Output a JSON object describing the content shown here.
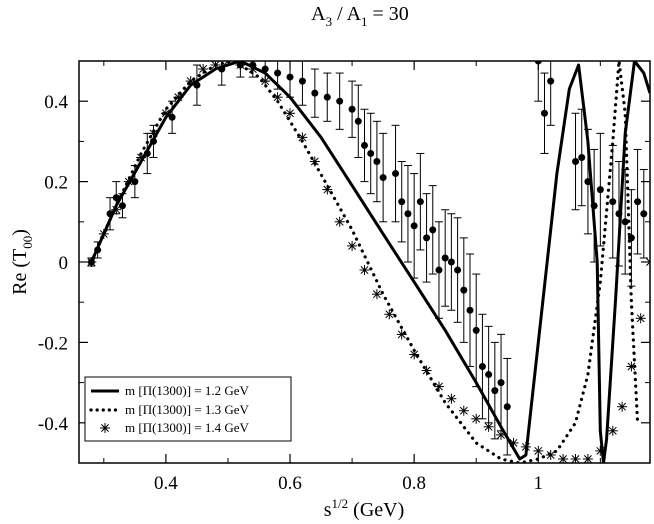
{
  "chart_data": {
    "type": "line",
    "title": {
      "main": "A",
      "sub1": "3",
      "sep": " / A",
      "sub2": "1",
      "tail": " = 30"
    },
    "xlabel": {
      "base": "s",
      "sup": "1/2",
      "tail": " (GeV)"
    },
    "ylabel": {
      "base": "Re (T",
      "sub": "00",
      "tail": ")"
    },
    "xlim": [
      0.26,
      1.18
    ],
    "ylim": [
      -0.5,
      0.5
    ],
    "x_ticks": [
      {
        "value": 0.4,
        "label": "0.4"
      },
      {
        "value": 0.6,
        "label": "0.6"
      },
      {
        "value": 0.8,
        "label": "0.8"
      },
      {
        "value": 1.0,
        "label": "1"
      }
    ],
    "y_ticks": [
      {
        "value": -0.4,
        "label": "-0.4"
      },
      {
        "value": -0.2,
        "label": "-0.2"
      },
      {
        "value": 0.0,
        "label": "0"
      },
      {
        "value": 0.2,
        "label": "0.2"
      },
      {
        "value": 0.4,
        "label": "0.4"
      }
    ],
    "legend": {
      "position": "bottom-left",
      "entries": [
        {
          "series": "solid",
          "label": "m [Π(1300)]  = 1.2 GeV"
        },
        {
          "series": "dotted",
          "label": "m [Π(1300)]  = 1.3 GeV"
        },
        {
          "series": "star",
          "label": "m [Π(1300)]  = 1.4 GeV"
        }
      ]
    },
    "series": [
      {
        "name": "m [Π(1300)] = 1.2 GeV",
        "style": "solid",
        "points": [
          [
            0.28,
            0.0
          ],
          [
            0.32,
            0.14
          ],
          [
            0.36,
            0.25
          ],
          [
            0.4,
            0.36
          ],
          [
            0.44,
            0.44
          ],
          [
            0.48,
            0.48
          ],
          [
            0.52,
            0.5
          ],
          [
            0.56,
            0.47
          ],
          [
            0.6,
            0.41
          ],
          [
            0.65,
            0.31
          ],
          [
            0.7,
            0.19
          ],
          [
            0.75,
            0.07
          ],
          [
            0.8,
            -0.05
          ],
          [
            0.85,
            -0.17
          ],
          [
            0.9,
            -0.3
          ],
          [
            0.94,
            -0.41
          ],
          [
            0.97,
            -0.49
          ],
          [
            0.98,
            -0.48
          ],
          [
            1.0,
            -0.2
          ],
          [
            1.03,
            0.22
          ],
          [
            1.05,
            0.43
          ],
          [
            1.065,
            0.49
          ],
          [
            1.08,
            0.3
          ],
          [
            1.095,
            0.0
          ],
          [
            1.1,
            -0.42
          ],
          [
            1.105,
            -0.5
          ],
          [
            1.11,
            -0.44
          ],
          [
            1.125,
            -0.08
          ],
          [
            1.14,
            0.32
          ],
          [
            1.155,
            0.5
          ],
          [
            1.17,
            0.47
          ],
          [
            1.18,
            0.42
          ]
        ]
      },
      {
        "name": "m [Π(1300)] = 1.3 GeV",
        "style": "dotted",
        "points": [
          [
            0.28,
            0.0
          ],
          [
            0.32,
            0.14
          ],
          [
            0.36,
            0.27
          ],
          [
            0.4,
            0.38
          ],
          [
            0.44,
            0.45
          ],
          [
            0.48,
            0.49
          ],
          [
            0.51,
            0.5
          ],
          [
            0.55,
            0.46
          ],
          [
            0.58,
            0.4
          ],
          [
            0.62,
            0.3
          ],
          [
            0.66,
            0.19
          ],
          [
            0.7,
            0.08
          ],
          [
            0.75,
            -0.08
          ],
          [
            0.8,
            -0.22
          ],
          [
            0.85,
            -0.35
          ],
          [
            0.9,
            -0.45
          ],
          [
            0.94,
            -0.49
          ],
          [
            0.97,
            -0.5
          ],
          [
            1.0,
            -0.49
          ],
          [
            1.03,
            -0.47
          ],
          [
            1.06,
            -0.4
          ],
          [
            1.08,
            -0.28
          ],
          [
            1.1,
            -0.05
          ],
          [
            1.12,
            0.3
          ],
          [
            1.13,
            0.5
          ],
          [
            1.14,
            0.37
          ],
          [
            1.15,
            -0.1
          ],
          [
            1.16,
            -0.4
          ]
        ]
      },
      {
        "name": "m [Π(1300)] = 1.4 GeV",
        "style": "star",
        "points": [
          [
            0.28,
            0.0
          ],
          [
            0.3,
            0.07
          ],
          [
            0.32,
            0.13
          ],
          [
            0.34,
            0.2
          ],
          [
            0.36,
            0.26
          ],
          [
            0.38,
            0.32
          ],
          [
            0.4,
            0.37
          ],
          [
            0.42,
            0.41
          ],
          [
            0.44,
            0.45
          ],
          [
            0.46,
            0.48
          ],
          [
            0.48,
            0.49
          ],
          [
            0.5,
            0.5
          ],
          [
            0.52,
            0.49
          ],
          [
            0.54,
            0.48
          ],
          [
            0.56,
            0.45
          ],
          [
            0.58,
            0.41
          ],
          [
            0.6,
            0.37
          ],
          [
            0.62,
            0.31
          ],
          [
            0.64,
            0.25
          ],
          [
            0.66,
            0.18
          ],
          [
            0.68,
            0.1
          ],
          [
            0.7,
            0.04
          ],
          [
            0.72,
            -0.02
          ],
          [
            0.74,
            -0.08
          ],
          [
            0.76,
            -0.13
          ],
          [
            0.78,
            -0.18
          ],
          [
            0.8,
            -0.23
          ],
          [
            0.82,
            -0.27
          ],
          [
            0.84,
            -0.31
          ],
          [
            0.86,
            -0.34
          ],
          [
            0.88,
            -0.37
          ],
          [
            0.9,
            -0.39
          ],
          [
            0.92,
            -0.41
          ],
          [
            0.94,
            -0.43
          ],
          [
            0.96,
            -0.45
          ],
          [
            0.98,
            -0.46
          ],
          [
            1.0,
            -0.47
          ],
          [
            1.02,
            -0.48
          ],
          [
            1.04,
            -0.49
          ],
          [
            1.06,
            -0.49
          ],
          [
            1.08,
            -0.49
          ],
          [
            1.1,
            -0.47
          ],
          [
            1.12,
            -0.42
          ],
          [
            1.135,
            -0.36
          ],
          [
            1.15,
            -0.26
          ],
          [
            1.165,
            -0.14
          ],
          [
            1.18,
            0.0
          ]
        ]
      },
      {
        "name": "data",
        "style": "errorbar",
        "points": [
          [
            0.28,
            0.0,
            0.01
          ],
          [
            0.29,
            0.03,
            0.02
          ],
          [
            0.31,
            0.12,
            0.04
          ],
          [
            0.32,
            0.16,
            0.04
          ],
          [
            0.33,
            0.14,
            0.03
          ],
          [
            0.35,
            0.2,
            0.04
          ],
          [
            0.37,
            0.27,
            0.05
          ],
          [
            0.38,
            0.3,
            0.04
          ],
          [
            0.41,
            0.36,
            0.04
          ],
          [
            0.45,
            0.44,
            0.05
          ],
          [
            0.49,
            0.48,
            0.04
          ],
          [
            0.52,
            0.49,
            0.03
          ],
          [
            0.54,
            0.49,
            0.03
          ],
          [
            0.56,
            0.48,
            0.03
          ],
          [
            0.58,
            0.47,
            0.04
          ],
          [
            0.6,
            0.46,
            0.05
          ],
          [
            0.62,
            0.45,
            0.06
          ],
          [
            0.64,
            0.42,
            0.06
          ],
          [
            0.66,
            0.41,
            0.06
          ],
          [
            0.68,
            0.4,
            0.07
          ],
          [
            0.7,
            0.38,
            0.07
          ],
          [
            0.71,
            0.35,
            0.09
          ],
          [
            0.72,
            0.29,
            0.09
          ],
          [
            0.73,
            0.27,
            0.1
          ],
          [
            0.74,
            0.25,
            0.1
          ],
          [
            0.75,
            0.21,
            0.11
          ],
          [
            0.77,
            0.22,
            0.12
          ],
          [
            0.78,
            0.15,
            0.1
          ],
          [
            0.79,
            0.12,
            0.12
          ],
          [
            0.8,
            0.09,
            0.13
          ],
          [
            0.81,
            0.15,
            0.12
          ],
          [
            0.82,
            0.06,
            0.11
          ],
          [
            0.83,
            0.08,
            0.11
          ],
          [
            0.84,
            -0.02,
            0.12
          ],
          [
            0.85,
            0.01,
            0.12
          ],
          [
            0.86,
            0.0,
            0.12
          ],
          [
            0.87,
            -0.02,
            0.13
          ],
          [
            0.88,
            -0.07,
            0.13
          ],
          [
            0.89,
            -0.12,
            0.14
          ],
          [
            0.9,
            -0.17,
            0.14
          ],
          [
            0.91,
            -0.26,
            0.13
          ],
          [
            0.92,
            -0.28,
            0.12
          ],
          [
            0.93,
            -0.32,
            0.12
          ],
          [
            0.94,
            -0.3,
            0.12
          ],
          [
            0.95,
            -0.36,
            0.12
          ],
          [
            1.0,
            0.5,
            0.1
          ],
          [
            1.01,
            0.37,
            0.1
          ],
          [
            1.02,
            0.45,
            0.11
          ],
          [
            1.06,
            0.25,
            0.12
          ],
          [
            1.07,
            0.26,
            0.12
          ],
          [
            1.08,
            0.2,
            0.13
          ],
          [
            1.09,
            0.14,
            0.14
          ],
          [
            1.1,
            0.18,
            0.14
          ],
          [
            1.12,
            0.15,
            0.14
          ],
          [
            1.13,
            0.12,
            0.13
          ],
          [
            1.14,
            0.1,
            0.13
          ],
          [
            1.15,
            0.06,
            0.12
          ],
          [
            1.16,
            0.15,
            0.13
          ],
          [
            1.17,
            0.12,
            0.11
          ]
        ]
      }
    ]
  }
}
